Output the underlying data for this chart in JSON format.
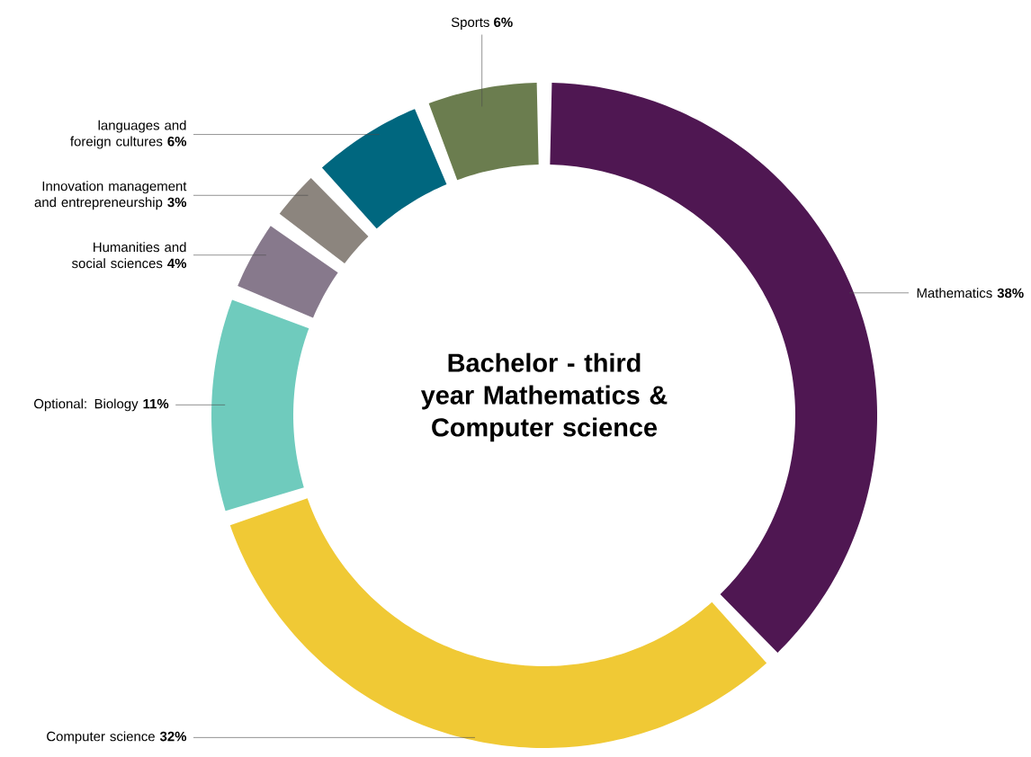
{
  "chart_data": {
    "type": "donut",
    "title": "Bachelor - third year Mathematics & Computer science",
    "categories": [
      "Mathematics",
      "Computer science",
      "Optional: Biology",
      "Humanities and social sciences",
      "Innovation management and entrepreneurship",
      "languages and foreign cultures",
      "Sports"
    ],
    "values": [
      38,
      32,
      11,
      4,
      3,
      6,
      6
    ],
    "value_labels": [
      "38%",
      "32%",
      "11%",
      "4%",
      "3%",
      "6%",
      "6%"
    ],
    "colors": [
      "#4f1752",
      "#f0c935",
      "#6fcbbd",
      "#87798c",
      "#8c857e",
      "#00677f",
      "#6b7d4f"
    ]
  }
}
